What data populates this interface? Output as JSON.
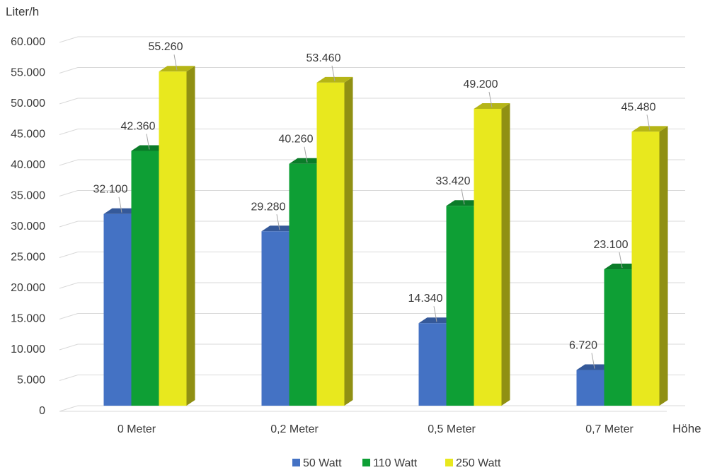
{
  "chart_data": {
    "type": "bar",
    "title": "",
    "ylabel": "Liter/h",
    "xlabel": "Höhe",
    "categories": [
      "0 Meter",
      "0,2 Meter",
      "0,5 Meter",
      "0,7 Meter"
    ],
    "series": [
      {
        "name": "50 Watt",
        "color": "#4472C4",
        "values": [
          32100,
          29280,
          14340,
          6720
        ],
        "labels": [
          "32.100",
          "29.280",
          "14.340",
          "6.720"
        ]
      },
      {
        "name": "110 Watt",
        "color": "#0E9F35",
        "values": [
          42360,
          40260,
          33420,
          23100
        ],
        "labels": [
          "42.360",
          "40.260",
          "33.420",
          "23.100"
        ]
      },
      {
        "name": "250 Watt",
        "color": "#E8E81E",
        "values": [
          55260,
          53460,
          49200,
          45480
        ],
        "labels": [
          "55.260",
          "53.460",
          "49.200",
          "45.480"
        ]
      }
    ],
    "ylim": [
      0,
      60000
    ],
    "yticks": [
      0,
      5000,
      10000,
      15000,
      20000,
      25000,
      30000,
      35000,
      40000,
      45000,
      50000,
      55000,
      60000
    ],
    "yticklabels": [
      "0",
      "5.000",
      "10.000",
      "15.000",
      "20.000",
      "25.000",
      "30.000",
      "35.000",
      "40.000",
      "45.000",
      "50.000",
      "55.000",
      "60.000"
    ],
    "grid": true,
    "legend": "bottom",
    "style": "3d-clustered-column"
  }
}
